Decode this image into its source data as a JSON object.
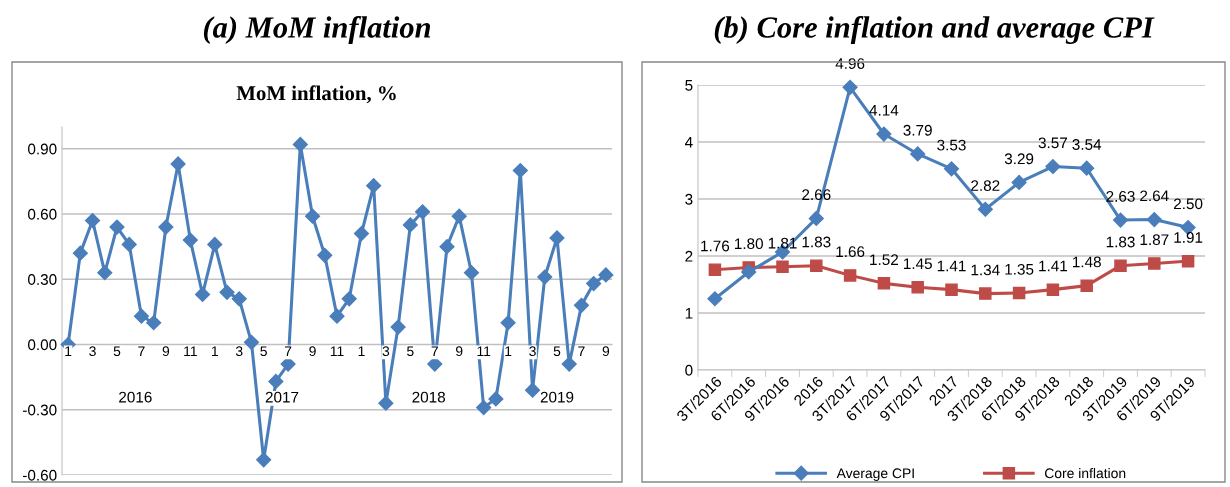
{
  "chart_data": [
    {
      "type": "line",
      "title": "(a) MoM inflation",
      "subtitle": "MoM inflation, %",
      "categories": [
        "1",
        null,
        "3",
        null,
        "5",
        null,
        "7",
        null,
        "9",
        null,
        "11",
        null,
        "1",
        null,
        "3",
        null,
        "5",
        null,
        "7",
        null,
        "9",
        null,
        "11",
        null,
        "1",
        null,
        "3",
        null,
        "5",
        null,
        "7",
        null,
        "9",
        null,
        "11",
        null,
        "1",
        null,
        "3",
        null,
        "5",
        null,
        "7",
        null,
        "9"
      ],
      "series": [
        {
          "color": "#4a7ebb",
          "marker": "diamond",
          "values": [
            0.0,
            0.42,
            0.57,
            0.33,
            0.54,
            0.46,
            0.13,
            0.1,
            0.54,
            0.83,
            0.48,
            0.23,
            0.46,
            0.24,
            0.21,
            0.01,
            -0.53,
            -0.17,
            -0.09,
            0.92,
            0.59,
            0.41,
            0.13,
            0.21,
            0.51,
            0.73,
            -0.27,
            0.08,
            0.55,
            0.61,
            -0.09,
            0.45,
            0.59,
            0.33,
            -0.29,
            -0.25,
            0.1,
            0.8,
            -0.21,
            0.31,
            0.49,
            -0.09,
            0.18,
            0.28,
            0.32
          ]
        }
      ],
      "annotations": [
        "2016",
        "2017",
        "2018",
        "2019"
      ],
      "ylim": [
        -0.6,
        1.0
      ],
      "yticks": [
        {
          "value": -0.6,
          "label": "-0.60"
        },
        {
          "value": -0.3,
          "label": "-0.30"
        },
        {
          "value": 0,
          "label": "0.00"
        },
        {
          "value": 0.3,
          "label": "0.30"
        },
        {
          "value": 0.6,
          "label": "0.60"
        },
        {
          "value": 0.9,
          "label": "0.90"
        }
      ],
      "grid": "y"
    },
    {
      "type": "line",
      "title": "(b) Core inflation and average CPI",
      "categories": [
        "3T/2016",
        "6T/2016",
        "9T/2016",
        "2016",
        "3T/2017",
        "6T/2017",
        "9T/2017",
        "2017",
        "3T/2018",
        "6T/2018",
        "9T/2018",
        "2018",
        "3T/2019",
        "6T/2019",
        "9T/2019"
      ],
      "series": [
        {
          "name": "Average CPI",
          "color": "#4a7ebb",
          "marker": "diamond",
          "values": [
            1.25,
            1.72,
            2.07,
            2.66,
            4.96,
            4.14,
            3.79,
            3.53,
            2.82,
            3.29,
            3.57,
            3.54,
            2.63,
            2.64,
            2.5
          ],
          "value_labels": [
            null,
            null,
            null,
            "2.66",
            "4.96",
            "4.14",
            "3.79",
            "3.53",
            "2.82",
            "3.29",
            "3.57",
            "3.54",
            "2.63",
            "2.64",
            "2.50"
          ]
        },
        {
          "name": "Core inflation",
          "color": "#be4b48",
          "marker": "square",
          "values": [
            1.76,
            1.8,
            1.81,
            1.83,
            1.66,
            1.52,
            1.45,
            1.41,
            1.34,
            1.35,
            1.41,
            1.48,
            1.83,
            1.87,
            1.91
          ],
          "value_labels": [
            "1.76",
            "1.80",
            "1.81",
            "1.83",
            "1.66",
            "1.52",
            "1.45",
            "1.41",
            "1.34",
            "1.35",
            "1.41",
            "1.48",
            "1.83",
            "1.87",
            "1.91"
          ]
        }
      ],
      "ylim": [
        0,
        5
      ],
      "yticks": [
        0,
        1,
        2,
        3,
        4,
        5
      ],
      "grid": "y",
      "legend": "bottom"
    }
  ]
}
